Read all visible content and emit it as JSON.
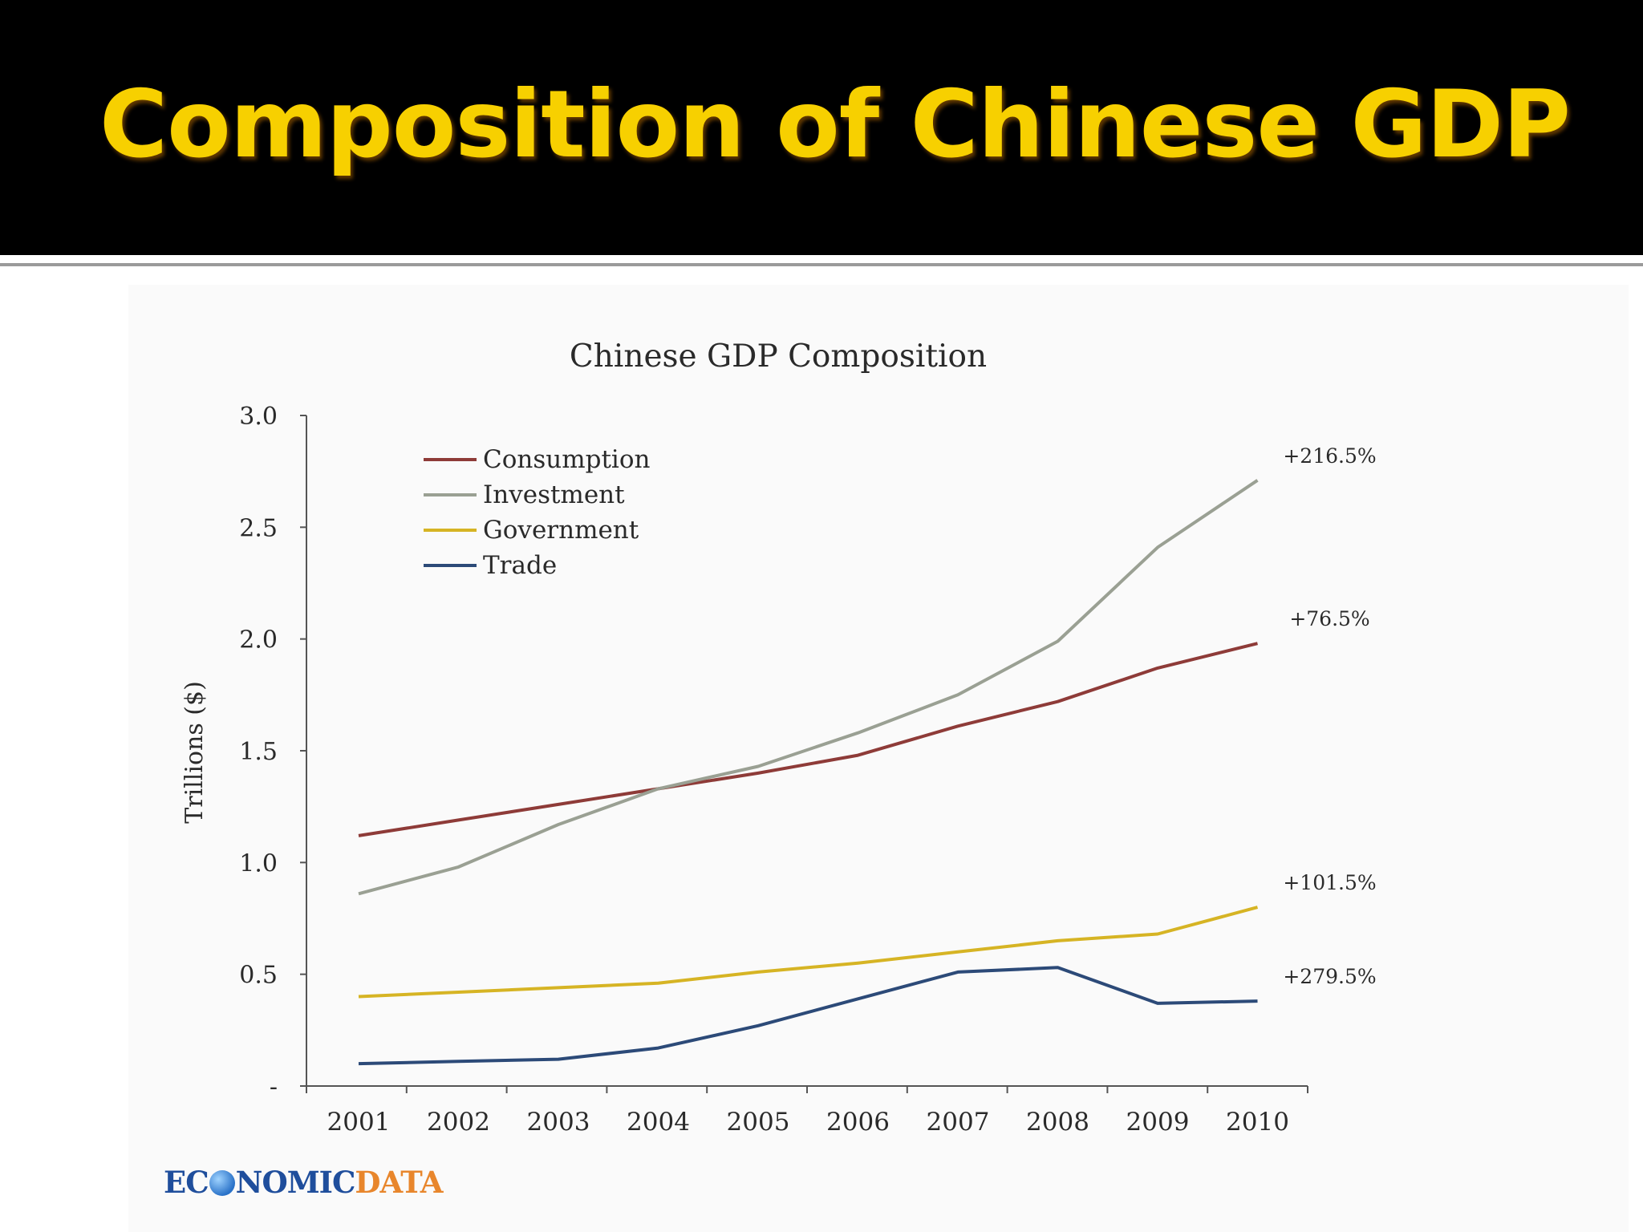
{
  "slide": {
    "title": "Composition of Chinese GDP",
    "logo_part1": "EC",
    "logo_part1b": "NOMIC",
    "logo_part2": "DATA"
  },
  "chart_data": {
    "type": "line",
    "title": "Chinese GDP Composition",
    "xlabel": "",
    "ylabel": "Trillions ($)",
    "x": [
      "2001",
      "2002",
      "2003",
      "2004",
      "2005",
      "2006",
      "2007",
      "2008",
      "2009",
      "2010"
    ],
    "ylim": [
      0,
      3.0
    ],
    "yticks": [
      "-",
      "0.5",
      "1.0",
      "1.5",
      "2.0",
      "2.5",
      "3.0"
    ],
    "grid": false,
    "legend": "top-left",
    "series": [
      {
        "name": "Consumption",
        "color": "#8e3b38",
        "values": [
          1.12,
          1.19,
          1.26,
          1.33,
          1.4,
          1.48,
          1.61,
          1.72,
          1.87,
          1.98
        ],
        "end_label": "+76.5%"
      },
      {
        "name": "Investment",
        "color": "#9aa093",
        "values": [
          0.86,
          0.98,
          1.17,
          1.33,
          1.43,
          1.58,
          1.75,
          1.99,
          2.41,
          2.71
        ],
        "end_label": "+216.5%"
      },
      {
        "name": "Government",
        "color": "#d6b424",
        "values": [
          0.4,
          0.42,
          0.44,
          0.46,
          0.51,
          0.55,
          0.6,
          0.65,
          0.68,
          0.8
        ],
        "end_label": "+101.5%"
      },
      {
        "name": "Trade",
        "color": "#2c4a78",
        "values": [
          0.1,
          0.11,
          0.12,
          0.17,
          0.27,
          0.39,
          0.51,
          0.53,
          0.37,
          0.38
        ],
        "end_label": "+279.5%"
      }
    ]
  }
}
